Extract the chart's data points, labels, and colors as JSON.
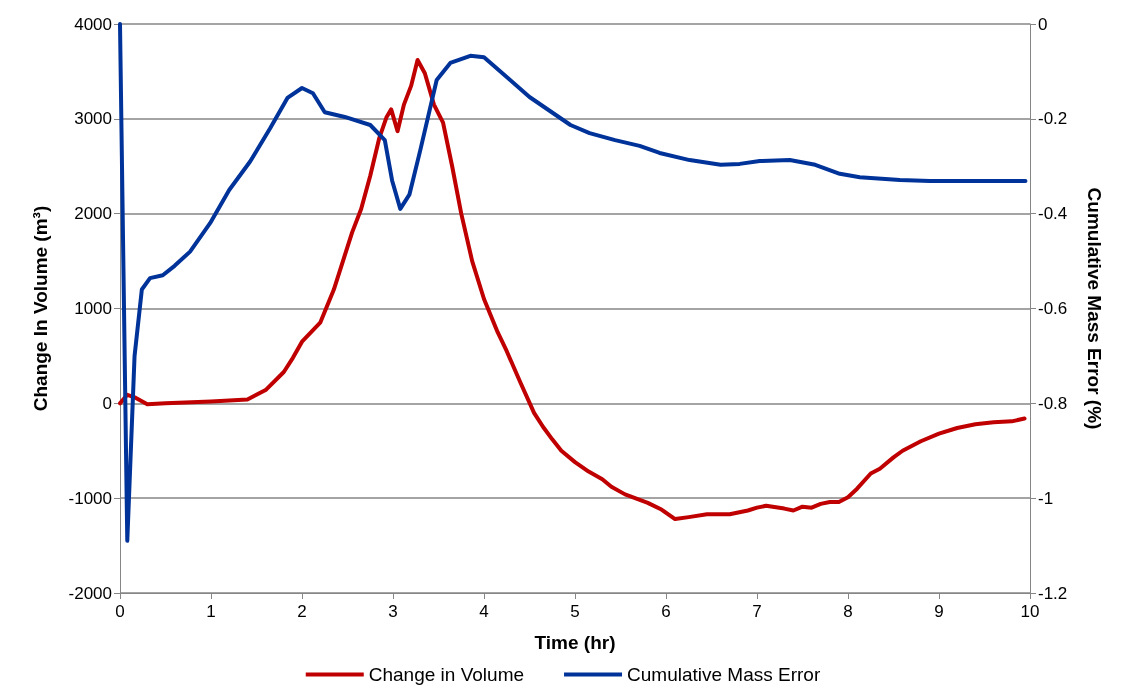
{
  "chart_data": {
    "type": "line",
    "xlabel": "Time (hr)",
    "ylabel": "Change In Volume (m³)",
    "y2label": "Cumulative Mass Error (%)",
    "xlim": [
      0,
      10
    ],
    "xticks": [
      0,
      1,
      2,
      3,
      4,
      5,
      6,
      7,
      8,
      9,
      10
    ],
    "ylim": [
      -2000,
      4000
    ],
    "yticks": [
      -2000,
      -1000,
      0,
      1000,
      2000,
      3000,
      4000
    ],
    "y2lim": [
      -1.2,
      0
    ],
    "y2ticks": [
      -1.2,
      -1,
      -0.8,
      -0.6,
      -0.4,
      -0.2,
      0
    ],
    "grid": "y",
    "legend": "bottom",
    "marker": "none",
    "line_style": "solid",
    "series": [
      {
        "name": "Change in Volume",
        "color": "#c00000",
        "x": [
          0,
          0.08,
          0.17,
          0.3,
          0.5,
          1,
          1.4,
          1.6,
          1.8,
          1.9,
          2,
          2.2,
          2.35,
          2.45,
          2.55,
          2.65,
          2.75,
          2.85,
          2.93,
          2.98,
          3.05,
          3.12,
          3.2,
          3.27,
          3.35,
          3.45,
          3.55,
          3.65,
          3.75,
          3.87,
          4,
          4.15,
          4.25,
          4.4,
          4.55,
          4.65,
          4.75,
          4.85,
          5,
          5.15,
          5.3,
          5.4,
          5.55,
          5.8,
          5.95,
          6.1,
          6.25,
          6.45,
          6.7,
          6.9,
          7,
          7.1,
          7.3,
          7.4,
          7.5,
          7.6,
          7.7,
          7.8,
          7.9,
          8,
          8.1,
          8.25,
          8.35,
          8.5,
          8.6,
          8.8,
          9,
          9.2,
          9.4,
          9.6,
          9.8,
          9.94
        ],
        "values": [
          0,
          90,
          60,
          -10,
          0,
          20,
          40,
          140,
          330,
          480,
          650,
          850,
          1200,
          1500,
          1800,
          2050,
          2400,
          2800,
          3020,
          3100,
          2870,
          3150,
          3350,
          3620,
          3480,
          3150,
          2960,
          2500,
          2000,
          1500,
          1100,
          750,
          550,
          220,
          -100,
          -250,
          -380,
          -500,
          -620,
          -720,
          -800,
          -880,
          -960,
          -1050,
          -1120,
          -1220,
          -1200,
          -1170,
          -1170,
          -1130,
          -1100,
          -1080,
          -1110,
          -1130,
          -1090,
          -1100,
          -1060,
          -1040,
          -1040,
          -990,
          -900,
          -740,
          -690,
          -570,
          -500,
          -400,
          -320,
          -260,
          -220,
          -200,
          -190,
          -160
        ]
      },
      {
        "name": "Cumulative Mass Error",
        "color": "#003399",
        "axis": "y2",
        "x": [
          0,
          0.08,
          0.16,
          0.24,
          0.33,
          0.47,
          0.6,
          0.77,
          0.99,
          1.2,
          1.43,
          1.65,
          1.84,
          2,
          2.12,
          2.25,
          2.47,
          2.75,
          2.91,
          2.99,
          3.08,
          3.18,
          3.3,
          3.48,
          3.63,
          3.85,
          4,
          4.18,
          4.5,
          4.95,
          5.16,
          5.44,
          5.71,
          5.93,
          6.26,
          6.6,
          6.81,
          7.03,
          7.36,
          7.64,
          7.91,
          8.13,
          8.57,
          8.9,
          9.95
        ],
        "values": [
          0,
          -1.09,
          -0.7,
          -0.56,
          -0.536,
          -0.53,
          -0.51,
          -0.48,
          -0.42,
          -0.35,
          -0.29,
          -0.22,
          -0.156,
          -0.135,
          -0.146,
          -0.186,
          -0.196,
          -0.213,
          -0.245,
          -0.33,
          -0.39,
          -0.36,
          -0.266,
          -0.118,
          -0.082,
          -0.067,
          -0.07,
          -0.1,
          -0.154,
          -0.213,
          -0.23,
          -0.245,
          -0.257,
          -0.272,
          -0.287,
          -0.297,
          -0.295,
          -0.289,
          -0.287,
          -0.297,
          -0.316,
          -0.323,
          -0.329,
          -0.331,
          -0.331
        ]
      }
    ]
  }
}
